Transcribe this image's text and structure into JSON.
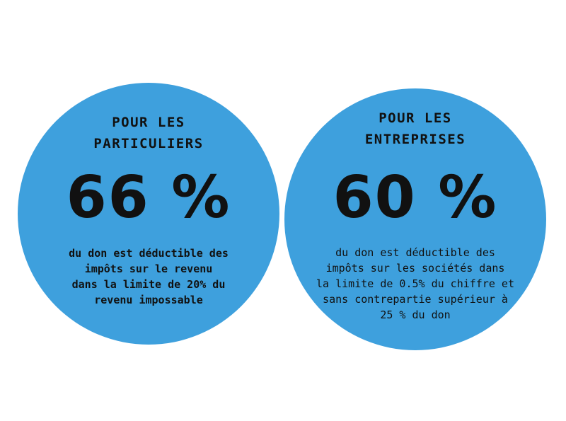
{
  "colors": {
    "circle_fill": "#3ea0dd",
    "text": "#111111",
    "background": "#ffffff"
  },
  "particuliers": {
    "heading_line1": "POUR LES",
    "heading_line2": "PARTICULIERS",
    "percent": "66 %",
    "desc_lines": [
      "du don est déductible des",
      "impôts sur le revenu",
      "dans la limite de 20% du",
      "revenu impossable"
    ]
  },
  "entreprises": {
    "heading_line1": "POUR LES",
    "heading_line2": "ENTREPRISES",
    "percent": "60 %",
    "desc_lines": [
      "du don est déductible des",
      "impôts sur les sociétés dans",
      "la limite de 0.5% du chiffre et",
      "sans contrepartie supérieur à",
      "25 % du don"
    ]
  }
}
